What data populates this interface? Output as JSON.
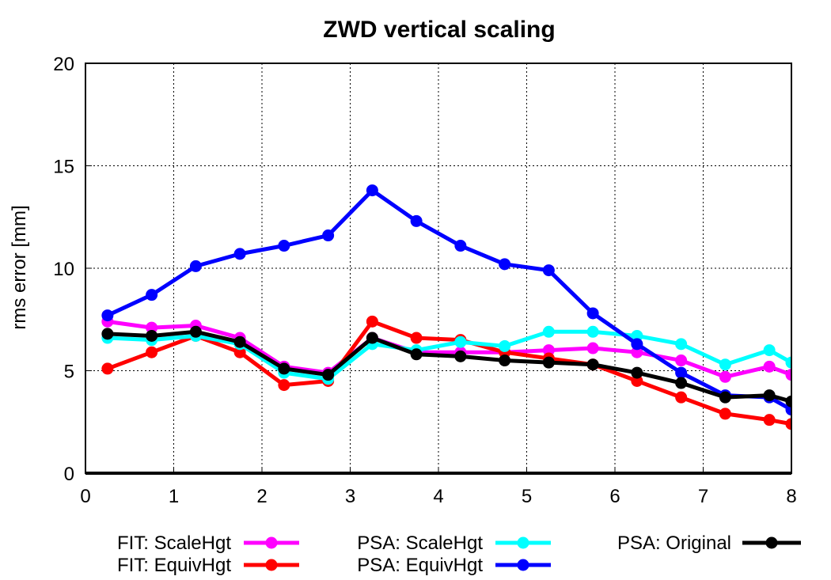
{
  "chart_data": {
    "type": "line",
    "title": "ZWD vertical scaling",
    "xlabel": "",
    "ylabel": "rms error [mm]",
    "xlim": [
      0,
      8
    ],
    "ylim": [
      0,
      20
    ],
    "xticks": [
      0,
      1,
      2,
      3,
      4,
      5,
      6,
      7,
      8
    ],
    "yticks": [
      0,
      5,
      10,
      15,
      20
    ],
    "grid": true,
    "legend_position": "bottom",
    "x": [
      0.25,
      0.75,
      1.25,
      1.75,
      2.25,
      2.75,
      3.25,
      3.75,
      4.25,
      4.75,
      5.25,
      5.75,
      6.25,
      6.75,
      7.25,
      7.75,
      8.0
    ],
    "series": [
      {
        "name": "FIT: ScaleHgt",
        "color": "#ff00ff",
        "values": [
          7.4,
          7.1,
          7.2,
          6.6,
          5.2,
          4.9,
          6.6,
          5.9,
          5.9,
          5.9,
          6.0,
          6.1,
          5.9,
          5.5,
          4.7,
          5.2,
          4.8
        ]
      },
      {
        "name": "FIT: EquivHgt",
        "color": "#ff0000",
        "values": [
          5.1,
          5.9,
          6.7,
          5.9,
          4.3,
          4.5,
          7.4,
          6.6,
          6.5,
          5.9,
          5.6,
          5.3,
          4.5,
          3.7,
          2.9,
          2.6,
          2.4
        ]
      },
      {
        "name": "PSA: ScaleHgt",
        "color": "#00ffff",
        "values": [
          6.6,
          6.5,
          6.7,
          6.3,
          4.9,
          4.6,
          6.3,
          6.0,
          6.4,
          6.2,
          6.9,
          6.9,
          6.7,
          6.3,
          5.3,
          6.0,
          5.4
        ]
      },
      {
        "name": "PSA: EquivHgt",
        "color": "#0000ff",
        "values": [
          7.7,
          8.7,
          10.1,
          10.7,
          11.1,
          11.6,
          13.8,
          12.3,
          11.1,
          10.2,
          9.9,
          7.8,
          6.3,
          4.9,
          3.8,
          3.7,
          3.1
        ]
      },
      {
        "name": "PSA: Original",
        "color": "#000000",
        "values": [
          6.8,
          6.7,
          6.9,
          6.4,
          5.1,
          4.8,
          6.6,
          5.8,
          5.7,
          5.5,
          5.4,
          5.3,
          4.9,
          4.4,
          3.7,
          3.8,
          3.5
        ]
      }
    ]
  }
}
